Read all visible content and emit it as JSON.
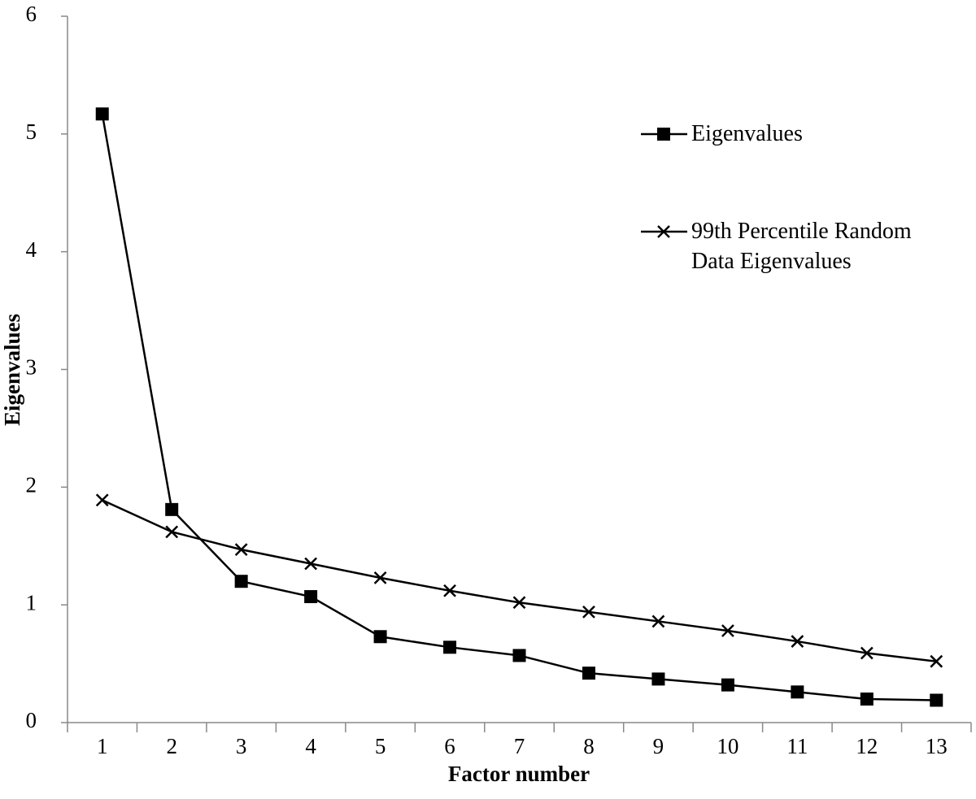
{
  "chart_data": {
    "type": "line",
    "x_label": "Factor number",
    "y_label": "Eigenvalues",
    "categories": [
      "1",
      "2",
      "3",
      "4",
      "5",
      "6",
      "7",
      "8",
      "9",
      "10",
      "11",
      "12",
      "13"
    ],
    "series": [
      {
        "name": "Eigenvalues",
        "color": "#000000",
        "marker": "square",
        "values": [
          5.17,
          1.81,
          1.2,
          1.07,
          0.73,
          0.64,
          0.57,
          0.42,
          0.37,
          0.32,
          0.26,
          0.2,
          0.19
        ]
      },
      {
        "name": "99th Percentile Random Data Eigenvalues",
        "color": "#000000",
        "marker": "x",
        "values": [
          1.89,
          1.62,
          1.47,
          1.35,
          1.23,
          1.12,
          1.02,
          0.94,
          0.86,
          0.78,
          0.69,
          0.59,
          0.52
        ]
      }
    ],
    "ylim": [
      0,
      6
    ],
    "yticks": [
      0,
      1,
      2,
      3,
      4,
      5,
      6
    ],
    "grid": false
  }
}
